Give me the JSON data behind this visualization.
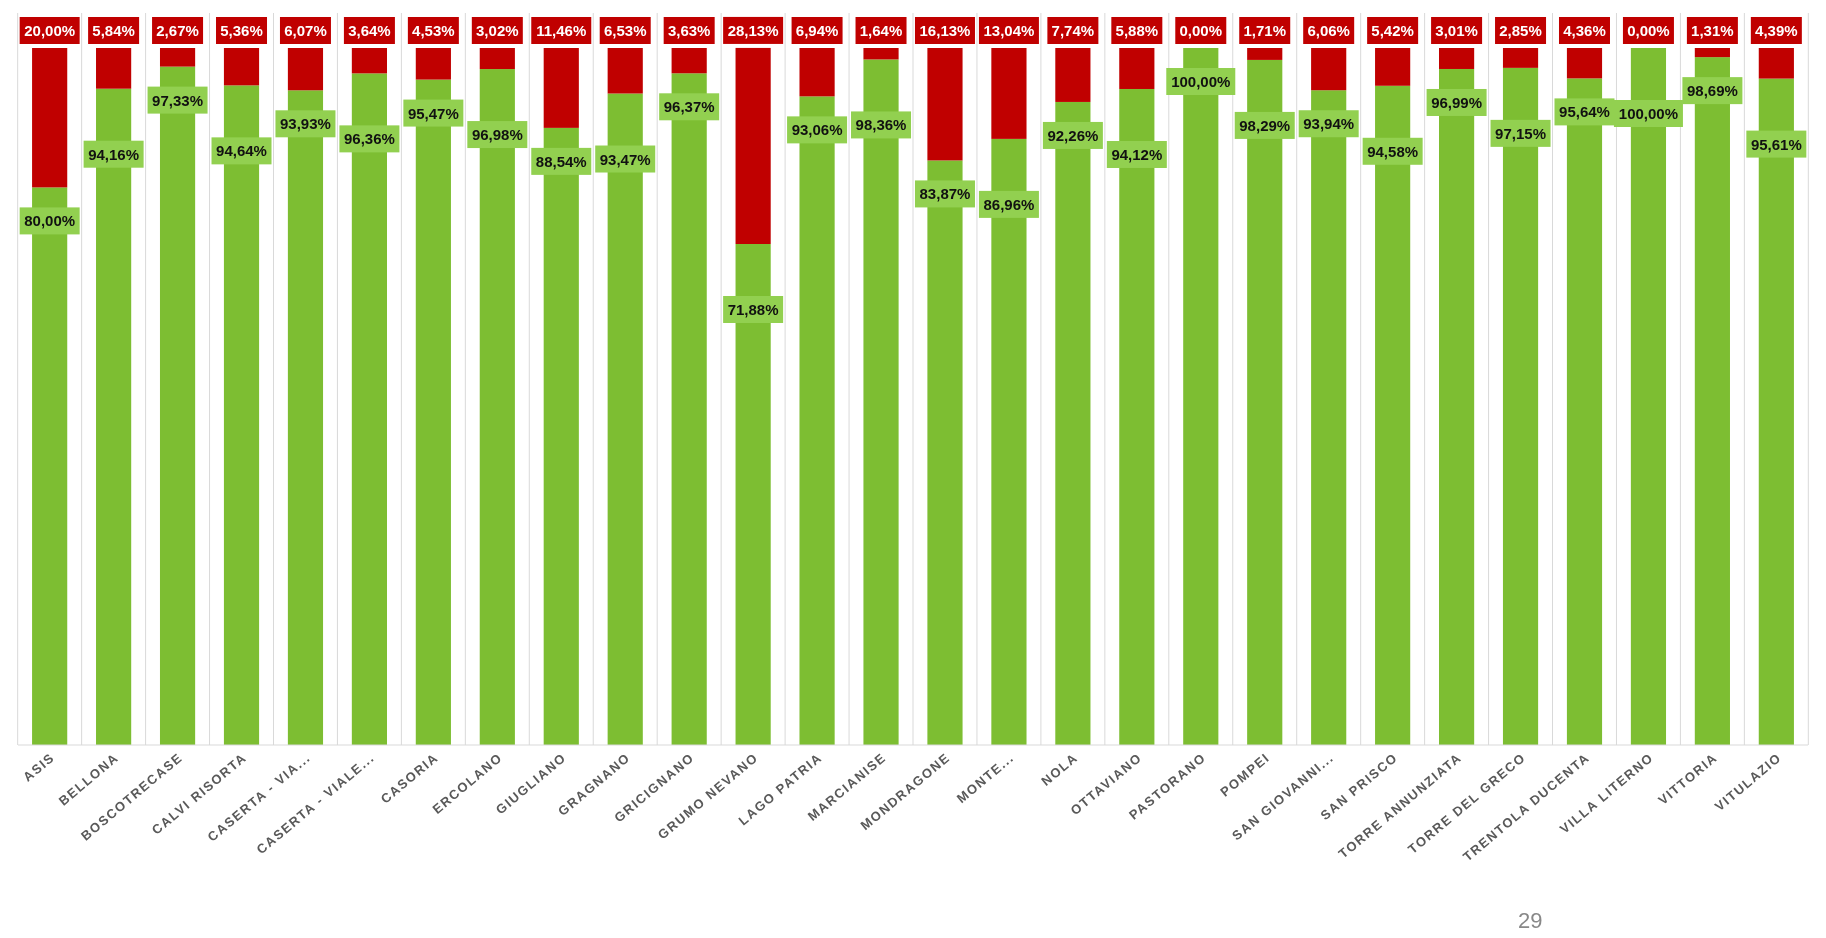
{
  "chart_data": {
    "type": "bar",
    "stacked": true,
    "categories": [
      "ASIS",
      "BELLONA",
      "BOSCOTRECASE",
      "CALVI RISORTA",
      "CASERTA - VIA...",
      "CASERTA - VIALE...",
      "CASORIA",
      "ERCOLANO",
      "GIUGLIANO",
      "GRAGNANO",
      "GRICIGNANO",
      "GRUMO NEVANO",
      "LAGO PATRIA",
      "MARCIANISE",
      "MONDRAGONE",
      "MONTE...",
      "NOLA",
      "OTTAVIANO",
      "PASTORANO",
      "POMPEI",
      "SAN GIOVANNI...",
      "SAN PRISCO",
      "TORRE ANNUNZIATA",
      "TORRE DEL GRECO",
      "TRENTOLA DUCENTA",
      "VILLA LITERNO",
      "VITTORIA",
      "VITULAZIO"
    ],
    "series": [
      {
        "color": "#7dbe32",
        "values": [
          80,
          94.16,
          97.33,
          94.64,
          93.93,
          96.36,
          95.47,
          96.98,
          88.54,
          93.47,
          96.37,
          71.88,
          93.06,
          98.36,
          83.87,
          86.96,
          92.26,
          94.12,
          100,
          98.29,
          93.94,
          94.58,
          96.99,
          97.15,
          95.64,
          100,
          98.69,
          95.61
        ],
        "value_labels": [
          "80,00%",
          "94,16%",
          "97,33%",
          "94,64%",
          "93,93%",
          "96,36%",
          "95,47%",
          "96,98%",
          "88,54%",
          "93,47%",
          "96,37%",
          "71,88%",
          "93,06%",
          "98,36%",
          "83,87%",
          "86,96%",
          "92,26%",
          "94,12%",
          "100,00%",
          "98,29%",
          "93,94%",
          "94,58%",
          "96,99%",
          "97,15%",
          "95,64%",
          "100,00%",
          "98,69%",
          "95,61%"
        ]
      },
      {
        "color": "#c00000",
        "values": [
          20,
          5.84,
          2.67,
          5.36,
          6.07,
          3.64,
          4.53,
          3.02,
          11.46,
          6.53,
          3.63,
          28.13,
          6.94,
          1.64,
          16.13,
          13.04,
          7.74,
          5.88,
          0,
          1.71,
          6.06,
          5.42,
          3.01,
          2.85,
          4.36,
          0,
          1.31,
          4.39
        ],
        "value_labels": [
          "20,00%",
          "5,84%",
          "2,67%",
          "5,36%",
          "6,07%",
          "3,64%",
          "4,53%",
          "3,02%",
          "11,46%",
          "6,53%",
          "3,63%",
          "28,13%",
          "6,94%",
          "1,64%",
          "16,13%",
          "13,04%",
          "7,74%",
          "5,88%",
          "0,00%",
          "1,71%",
          "6,06%",
          "5,42%",
          "3,01%",
          "2,85%",
          "4,36%",
          "0,00%",
          "1,31%",
          "4,39%"
        ]
      }
    ],
    "ylim": [
      0,
      100
    ],
    "tick_labels": "x",
    "grid": "x",
    "annotations": [
      "29"
    ]
  }
}
